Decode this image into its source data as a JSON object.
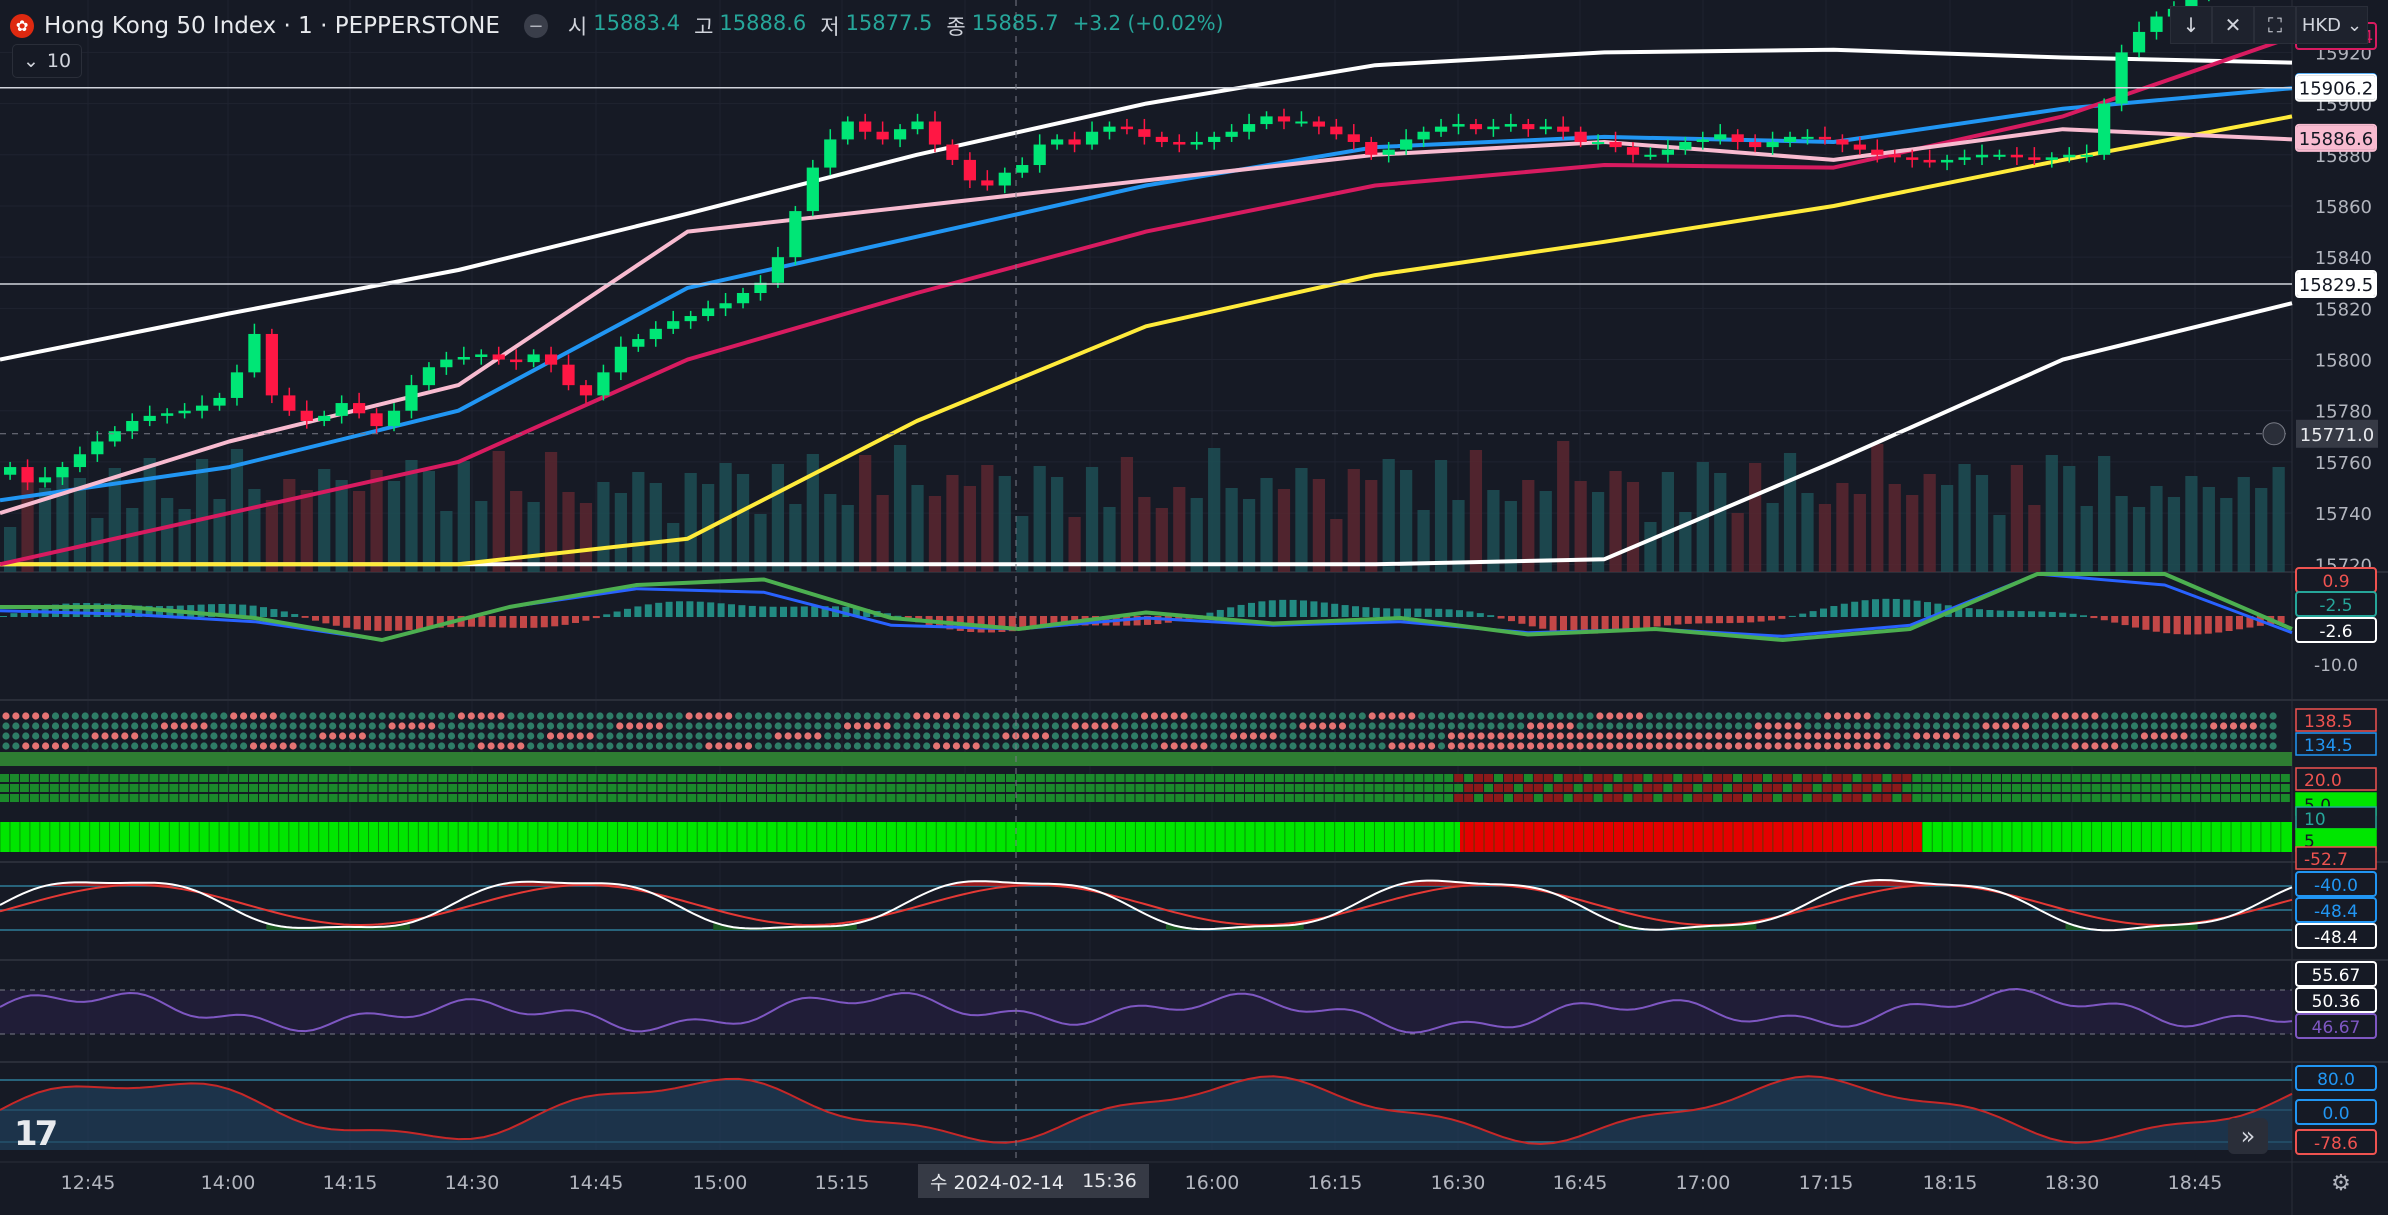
{
  "symbol": {
    "title": "Hong Kong 50 Index · 1 · PEPPERSTONE",
    "flag_icon": "hong-kong-flag-icon"
  },
  "ohlc": {
    "o_label": "시",
    "o": "15883.4",
    "h_label": "고",
    "h": "15888.6",
    "l_label": "저",
    "l": "15877.5",
    "c_label": "종",
    "c": "15885.7",
    "change": "+3.2 (+0.02%)"
  },
  "indicators_toggle": {
    "count": "10"
  },
  "toolbar": {
    "currency": "HKD"
  },
  "cursor": {
    "date": "수 2024-02-14",
    "time": "15:36",
    "price": "15771.0"
  },
  "colors": {
    "up": "#26a69a",
    "down": "#ef5350",
    "candle_up": "#00e676",
    "candle_down": "#ff1744",
    "background": "#161a25"
  },
  "chart_data": [
    {
      "type": "candlestick",
      "title": "Hong Kong 50 Index · 1 · PEPPERSTONE",
      "x": [
        "12:45",
        "14:00",
        "14:15",
        "14:30",
        "14:45",
        "15:00",
        "15:15",
        "15:30",
        "15:45",
        "16:00",
        "16:15",
        "16:30",
        "16:45",
        "17:00",
        "17:15",
        "18:15",
        "18:30",
        "18:45"
      ],
      "y_ticks": [
        15920,
        15900,
        15880,
        15860,
        15840,
        15820,
        15800,
        15780,
        15760,
        15740,
        15720
      ],
      "ylim": [
        15717,
        15935
      ],
      "price_tags": [
        {
          "value": "15926.4",
          "color": "#d81b60"
        },
        {
          "value": "15906.5",
          "color": "#2196f3"
        },
        {
          "value": "15906.2",
          "color": "#ffffff"
        },
        {
          "value": "15886.6",
          "color": "#f8bbd0"
        },
        {
          "value": "15829.5",
          "color": "#ffffff"
        }
      ],
      "horizontal_lines": [
        15906.2,
        15829.5
      ],
      "close_series": [
        15758,
        15752,
        15754,
        15758,
        15763,
        15768,
        15772,
        15776,
        15778,
        15779,
        15780,
        15782,
        15785,
        15795,
        15810,
        15786,
        15780,
        15776,
        15778,
        15783,
        15779,
        15774,
        15780,
        15790,
        15797,
        15800,
        15801,
        15802,
        15800,
        15799,
        15802,
        15798,
        15790,
        15786,
        15795,
        15805,
        15808,
        15812,
        15815,
        15817,
        15820,
        15822,
        15826,
        15830,
        15840,
        15858,
        15875,
        15886,
        15893,
        15889,
        15886,
        15890,
        15893,
        15884,
        15878,
        15870,
        15868,
        15873,
        15876,
        15884,
        15886,
        15884,
        15889,
        15891,
        15890,
        15887,
        15885,
        15884,
        15885,
        15887,
        15889,
        15892,
        15895,
        15893,
        15893,
        15891,
        15888,
        15885,
        15880,
        15882,
        15886,
        15889,
        15891,
        15892,
        15890,
        15891,
        15892,
        15890,
        15891,
        15889,
        15885,
        15885,
        15883,
        15880,
        15880,
        15882,
        15885,
        15886,
        15888,
        15885,
        15883,
        15885,
        15887,
        15887,
        15886,
        15884,
        15882,
        15880,
        15879,
        15878,
        15877,
        15878,
        15879,
        15880,
        15880,
        15879,
        15878,
        15879,
        15880,
        15880,
        15900,
        15920,
        15928,
        15934,
        15937,
        15942,
        15948,
        15955,
        15960,
        15966,
        15973
      ],
      "ma_lines": [
        {
          "name": "BB upper",
          "color": "#ffffff",
          "values": [
            15800,
            15818,
            15835,
            15857,
            15880,
            15900,
            15915,
            15920,
            15921,
            15918,
            15916
          ]
        },
        {
          "name": "BB lower",
          "color": "#ffffff",
          "values": [
            15720,
            15720,
            15720,
            15720,
            15720,
            15720,
            15720,
            15722,
            15760,
            15800,
            15822
          ]
        },
        {
          "name": "SMA 200",
          "color": "#ffeb3b",
          "values": [
            15720,
            15720,
            15720,
            15730,
            15776,
            15813,
            15833,
            15846,
            15860,
            15878,
            15895
          ]
        },
        {
          "name": "Trail blue",
          "color": "#2196f3",
          "values": [
            15745,
            15758,
            15780,
            15828,
            15848,
            15868,
            15883,
            15887,
            15885,
            15898,
            15906
          ]
        },
        {
          "name": "Trail magenta",
          "color": "#d81b60",
          "values": [
            15720,
            15740,
            15760,
            15800,
            15826,
            15850,
            15868,
            15876,
            15875,
            15895,
            15926
          ]
        },
        {
          "name": "Trail pink",
          "color": "#f8bbd0",
          "values": [
            15740,
            15768,
            15790,
            15850,
            15860,
            15870,
            15880,
            15885,
            15878,
            15890,
            15886
          ]
        }
      ]
    },
    {
      "type": "line",
      "title": "MACD",
      "y_ticks": [
        "0.9",
        "-2.5",
        "-2.6",
        "-10.0"
      ],
      "series": [
        {
          "color": "#2962ff",
          "values": [
            2,
            1,
            -1,
            -6,
            3,
            8,
            7,
            -2,
            -3,
            0,
            -2,
            -1,
            -4,
            -3,
            -5,
            -2,
            12,
            9,
            -4
          ]
        },
        {
          "color": "#00e676",
          "values": [
            2,
            2,
            0,
            -4,
            2,
            6,
            7,
            0,
            -2,
            1,
            -1,
            0,
            -3,
            -2,
            -4,
            -2,
            8,
            8,
            -2
          ]
        }
      ]
    },
    {
      "type": "heatmap",
      "title": "Dot matrix",
      "labels": [
        "138.5",
        "134.5",
        "20.0",
        "5.0",
        "10",
        "5",
        "-52.7"
      ]
    },
    {
      "type": "line",
      "title": "Stochastic",
      "y_ticks": [
        "-40.0",
        "-48.4",
        "-48.4"
      ],
      "series": [
        {
          "color": "#ffffff",
          "values": [
            0,
            1,
            -1,
            0,
            1,
            -1,
            0,
            1,
            -1,
            0,
            1,
            -1,
            0,
            1,
            -1,
            0,
            1,
            -1,
            0,
            1,
            -1,
            0,
            1
          ]
        }
      ]
    },
    {
      "type": "line",
      "title": "RSI",
      "y_ticks": [
        "55.67",
        "50.36",
        "46.67"
      ],
      "series": [
        {
          "color": "#7e57c2",
          "values": [
            50,
            49,
            51,
            50,
            52,
            49,
            53,
            55,
            54,
            56,
            57,
            54,
            51,
            50,
            53,
            52,
            51,
            50,
            52,
            53,
            58,
            55,
            52,
            51,
            50
          ]
        }
      ]
    },
    {
      "type": "area",
      "title": "Oscillator",
      "y_ticks": [
        "80.0",
        "0.0",
        "-78.6"
      ],
      "series": [
        {
          "color": "#c62828",
          "values": [
            40,
            45,
            30,
            -20,
            60,
            55,
            10,
            -40,
            20,
            60,
            50,
            -10,
            -60,
            40,
            55,
            30,
            -50,
            -20,
            50,
            55,
            60,
            -40,
            -70
          ]
        }
      ]
    }
  ]
}
